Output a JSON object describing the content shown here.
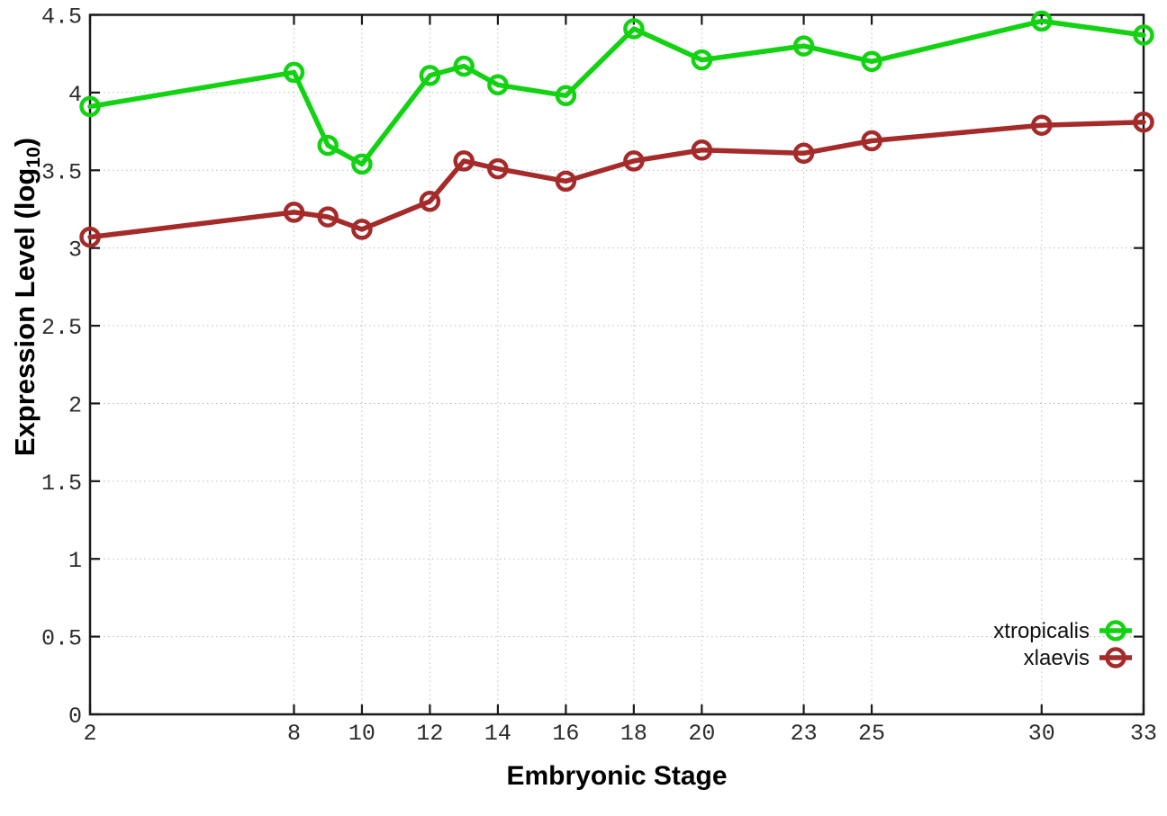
{
  "figure": {
    "background": "#ffffff",
    "border_color": "#1a1a1a",
    "grid_color": "#bdbdbd",
    "tick_label_color": "#2b2b2b"
  },
  "chart_data": {
    "type": "line",
    "title": "",
    "xlabel": "Embryonic Stage",
    "ylabel": "Expression Level (log10)",
    "ylabel_parts": {
      "prefix": "Expression Level (log",
      "subscript": "10",
      "suffix": ")"
    },
    "xlim": [
      2,
      33
    ],
    "ylim": [
      0,
      4.5
    ],
    "x_ticks": [
      2,
      8,
      10,
      12,
      14,
      16,
      18,
      20,
      23,
      25,
      30,
      33
    ],
    "y_ticks": [
      0,
      0.5,
      1,
      1.5,
      2,
      2.5,
      3,
      3.5,
      4,
      4.5
    ],
    "y_tick_labels": [
      "0",
      "0.5",
      "1",
      "1.5",
      "2",
      "2.5",
      "3",
      "3.5",
      "4",
      "4.5"
    ],
    "grid": true,
    "legend_position": "inside-bottom-right",
    "marker": "open-circle",
    "x": [
      2,
      8,
      9,
      10,
      12,
      13,
      14,
      16,
      18,
      20,
      23,
      25,
      30,
      33
    ],
    "series": [
      {
        "name": "xtropicalis",
        "color": "#12d212",
        "values": [
          3.91,
          4.13,
          3.66,
          3.54,
          4.11,
          4.17,
          4.05,
          3.98,
          4.41,
          4.21,
          4.3,
          4.2,
          4.46,
          4.37
        ]
      },
      {
        "name": "xlaevis",
        "color": "#a52a2a",
        "values": [
          3.07,
          3.23,
          3.2,
          3.12,
          3.3,
          3.56,
          3.51,
          3.43,
          3.56,
          3.63,
          3.61,
          3.69,
          3.79,
          3.81
        ]
      }
    ]
  }
}
